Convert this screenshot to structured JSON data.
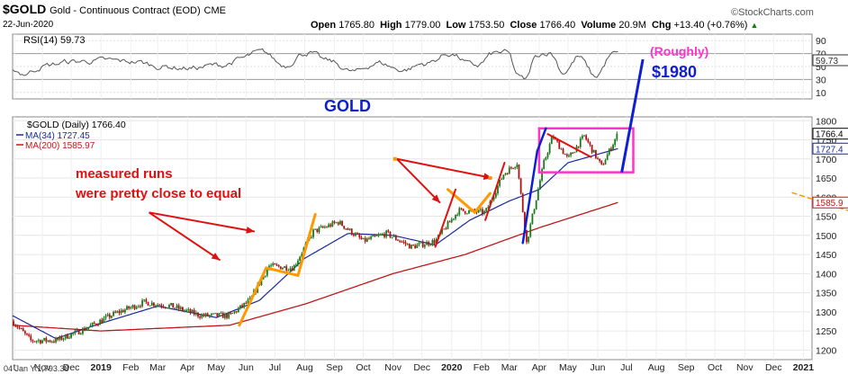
{
  "header": {
    "symbol": "$GOLD",
    "name": "Gold - Continuous Contract (EOD)",
    "exchange": "CME",
    "date": "22-Jun-2020",
    "open_label": "Open",
    "open": "1765.80",
    "high_label": "High",
    "high": "1779.00",
    "low_label": "Low",
    "low": "1753.50",
    "close_label": "Close",
    "close": "1766.40",
    "volume_label": "Volume",
    "volume": "20.9M",
    "chg_label": "Chg",
    "chg": "+13.40 (+0.76%)",
    "chg_arrow": "▲",
    "brand": "©StockCharts.com"
  },
  "rsi_panel": {
    "legend": "RSI(14) 59.73",
    "ticks": [
      "90",
      "70",
      "50",
      "30",
      "10"
    ],
    "current_tag": "59.73"
  },
  "price_panel": {
    "legend_main": "$GOLD (Daily) 1766.40",
    "legend_ma34": "MA(34) 1727.45",
    "legend_ma200": "MA(200) 1585.97",
    "ticks": [
      "1800",
      "1750",
      "1700",
      "1650",
      "1600",
      "1550",
      "1500",
      "1450",
      "1400",
      "1350",
      "1300",
      "1250",
      "1200"
    ],
    "tag_close": "1766.4",
    "tag_ma34": "1727.4",
    "tag_ma200": "1585.9"
  },
  "x_axis": {
    "cursor_readout": "04 Jan Y:1,793.38",
    "labels": [
      "t",
      "Nov",
      "Dec",
      "2019",
      "Feb",
      "Mar",
      "Apr",
      "May",
      "Jun",
      "Jul",
      "Aug",
      "Sep",
      "Oct",
      "Nov",
      "Dec",
      "2020",
      "Feb",
      "Mar",
      "Apr",
      "May",
      "Jun",
      "Jul",
      "Aug",
      "Sep",
      "Oct",
      "Nov",
      "Dec",
      "2021"
    ]
  },
  "annotations": {
    "gold": "GOLD",
    "measured_1": "measured runs",
    "measured_2": "were pretty close to equal",
    "roughly": "(Roughly)",
    "target": "$1980"
  },
  "colors": {
    "price_up": "#1a7a1a",
    "price_down": "#b01010",
    "ma34": "#1a2a9a",
    "ma200": "#c01818",
    "rsi": "#555555",
    "annotation_red": "#e01010",
    "orange": "#ff9900",
    "magenta": "#ff33cc",
    "blue": "#1020d0"
  },
  "chart_data": {
    "type": "line",
    "title": "$GOLD Gold - Continuous Contract (EOD)",
    "x_range": [
      "2018-10-01",
      "2021-01-10"
    ],
    "y_range": [
      1175,
      1810
    ],
    "price_close_approx": {
      "x": [
        "2018-10-01",
        "2018-10-20",
        "2018-11-15",
        "2018-12-15",
        "2019-01-15",
        "2019-02-15",
        "2019-03-15",
        "2019-04-15",
        "2019-05-15",
        "2019-06-05",
        "2019-06-25",
        "2019-07-20",
        "2019-08-10",
        "2019-09-05",
        "2019-10-01",
        "2019-10-25",
        "2019-11-20",
        "2019-12-15",
        "2020-01-08",
        "2020-02-05",
        "2020-02-24",
        "2020-03-09",
        "2020-03-19",
        "2020-04-06",
        "2020-04-15",
        "2020-05-01",
        "2020-05-18",
        "2020-06-05",
        "2020-06-22"
      ],
      "values": [
        1275,
        1225,
        1225,
        1255,
        1295,
        1325,
        1315,
        1290,
        1290,
        1330,
        1420,
        1415,
        1510,
        1535,
        1485,
        1505,
        1470,
        1485,
        1565,
        1560,
        1660,
        1690,
        1480,
        1690,
        1760,
        1700,
        1760,
        1680,
        1766
      ]
    },
    "ma34_approx": {
      "x": [
        "2018-10-01",
        "2018-11-15",
        "2019-01-01",
        "2019-03-01",
        "2019-05-01",
        "2019-06-15",
        "2019-08-01",
        "2019-09-15",
        "2019-11-01",
        "2019-12-15",
        "2020-01-20",
        "2020-03-01",
        "2020-04-01",
        "2020-05-01",
        "2020-06-22"
      ],
      "values": [
        1290,
        1230,
        1270,
        1315,
        1285,
        1330,
        1440,
        1505,
        1500,
        1475,
        1540,
        1590,
        1620,
        1690,
        1727
      ]
    },
    "ma200_approx": {
      "x": [
        "2018-10-01",
        "2019-01-01",
        "2019-05-15",
        "2019-08-01",
        "2019-11-01",
        "2020-01-15",
        "2020-04-01",
        "2020-06-22"
      ],
      "values": [
        1265,
        1250,
        1265,
        1320,
        1400,
        1450,
        1520,
        1586
      ]
    },
    "rsi_range": [
      0,
      100
    ],
    "rsi_last": 59.73
  }
}
